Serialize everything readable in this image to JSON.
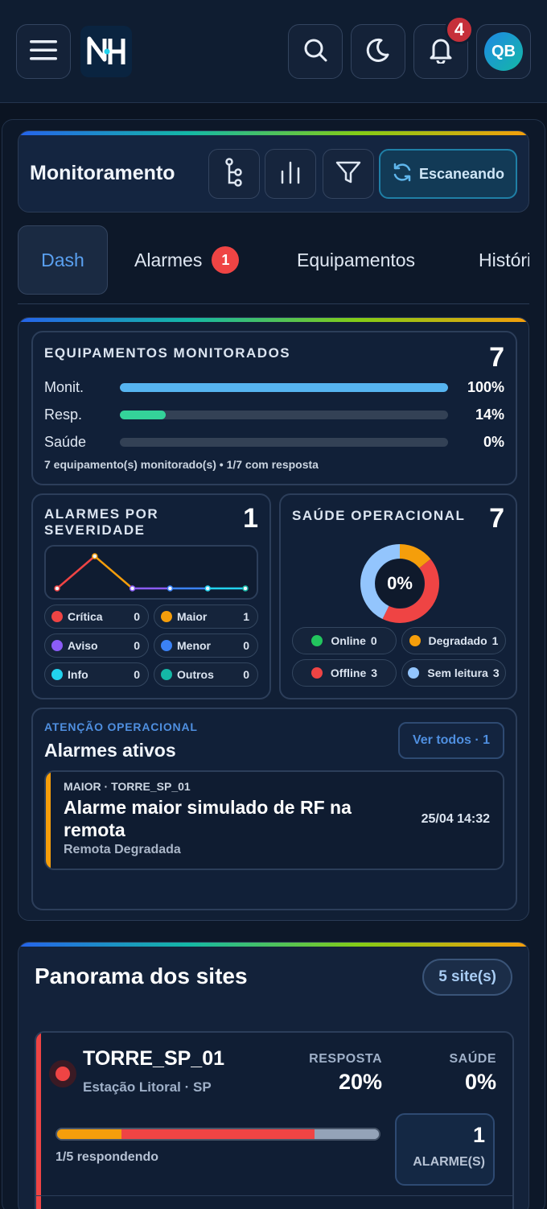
{
  "topbar": {
    "logo_text": "NH",
    "notification_count": "4",
    "avatar_initials": "QB"
  },
  "header": {
    "title": "Monitoramento",
    "scan_label": "Escaneando"
  },
  "tabs": [
    {
      "label": "Dash"
    },
    {
      "label": "Alarmes",
      "badge": "1"
    },
    {
      "label": "Equipamentos"
    },
    {
      "label": "Históricos"
    }
  ],
  "equipment": {
    "title": "EQUIPAMENTOS MONITORADOS",
    "count": "7",
    "bars": [
      {
        "label": "Monit.",
        "value": "100%",
        "fraction": 1.0,
        "color": "#56b4f0"
      },
      {
        "label": "Resp.",
        "value": "14%",
        "fraction": 0.14,
        "color": "#34d399"
      },
      {
        "label": "Saúde",
        "value": "0%",
        "fraction": 0.0,
        "color": "#64748b"
      }
    ],
    "note": "7 equipamento(s) monitorado(s) • 1/7 com resposta"
  },
  "severity": {
    "title_line1": "ALARMES POR",
    "title_line2": "SEVERIDADE",
    "count": "1",
    "chips": [
      {
        "label": "Crítica",
        "value": "0",
        "color": "#ef4444"
      },
      {
        "label": "Maior",
        "value": "1",
        "color": "#f59e0b"
      },
      {
        "label": "Aviso",
        "value": "0",
        "color": "#8b5cf6"
      },
      {
        "label": "Menor",
        "value": "0",
        "color": "#3b82f6"
      },
      {
        "label": "Info",
        "value": "0",
        "color": "#22d3ee"
      },
      {
        "label": "Outros",
        "value": "0",
        "color": "#14b8a6"
      }
    ],
    "sparkline": [
      0,
      1,
      0,
      0,
      0,
      0
    ]
  },
  "health": {
    "title": "SAÚDE OPERACIONAL",
    "count": "7",
    "donut_label": "0%",
    "segments": [
      {
        "label": "Online",
        "value": "0",
        "count": 0,
        "color": "#22c55e"
      },
      {
        "label": "Degradado",
        "value": "1",
        "count": 1,
        "color": "#f59e0b"
      },
      {
        "label": "Offline",
        "value": "3",
        "count": 3,
        "color": "#ef4444"
      },
      {
        "label": "Sem leitura",
        "value": "3",
        "count": 3,
        "color": "#93c5fd"
      }
    ]
  },
  "attention": {
    "kicker": "ATENÇÃO OPERACIONAL",
    "title": "Alarmes ativos",
    "view_all": "Ver todos · 1",
    "item": {
      "meta": "MAIOR · TORRE_SP_01",
      "title": "Alarme maior simulado de RF na remota",
      "subtitle": "Remota Degradada",
      "time": "25/04 14:32",
      "color": "#f59e0b"
    }
  },
  "sites": {
    "title": "Panorama dos sites",
    "count_badge": "5 site(s)",
    "site": {
      "name": "TORRE_SP_01",
      "location": "Estação Litoral · SP",
      "resp_label": "RESPOSTA",
      "resp_value": "20%",
      "health_label": "SAÚDE",
      "health_value": "0%",
      "responding": "1/5 respondendo",
      "alarm_count": "1",
      "alarm_label": "ALARME(S)",
      "status_color": "#ef4444"
    }
  }
}
